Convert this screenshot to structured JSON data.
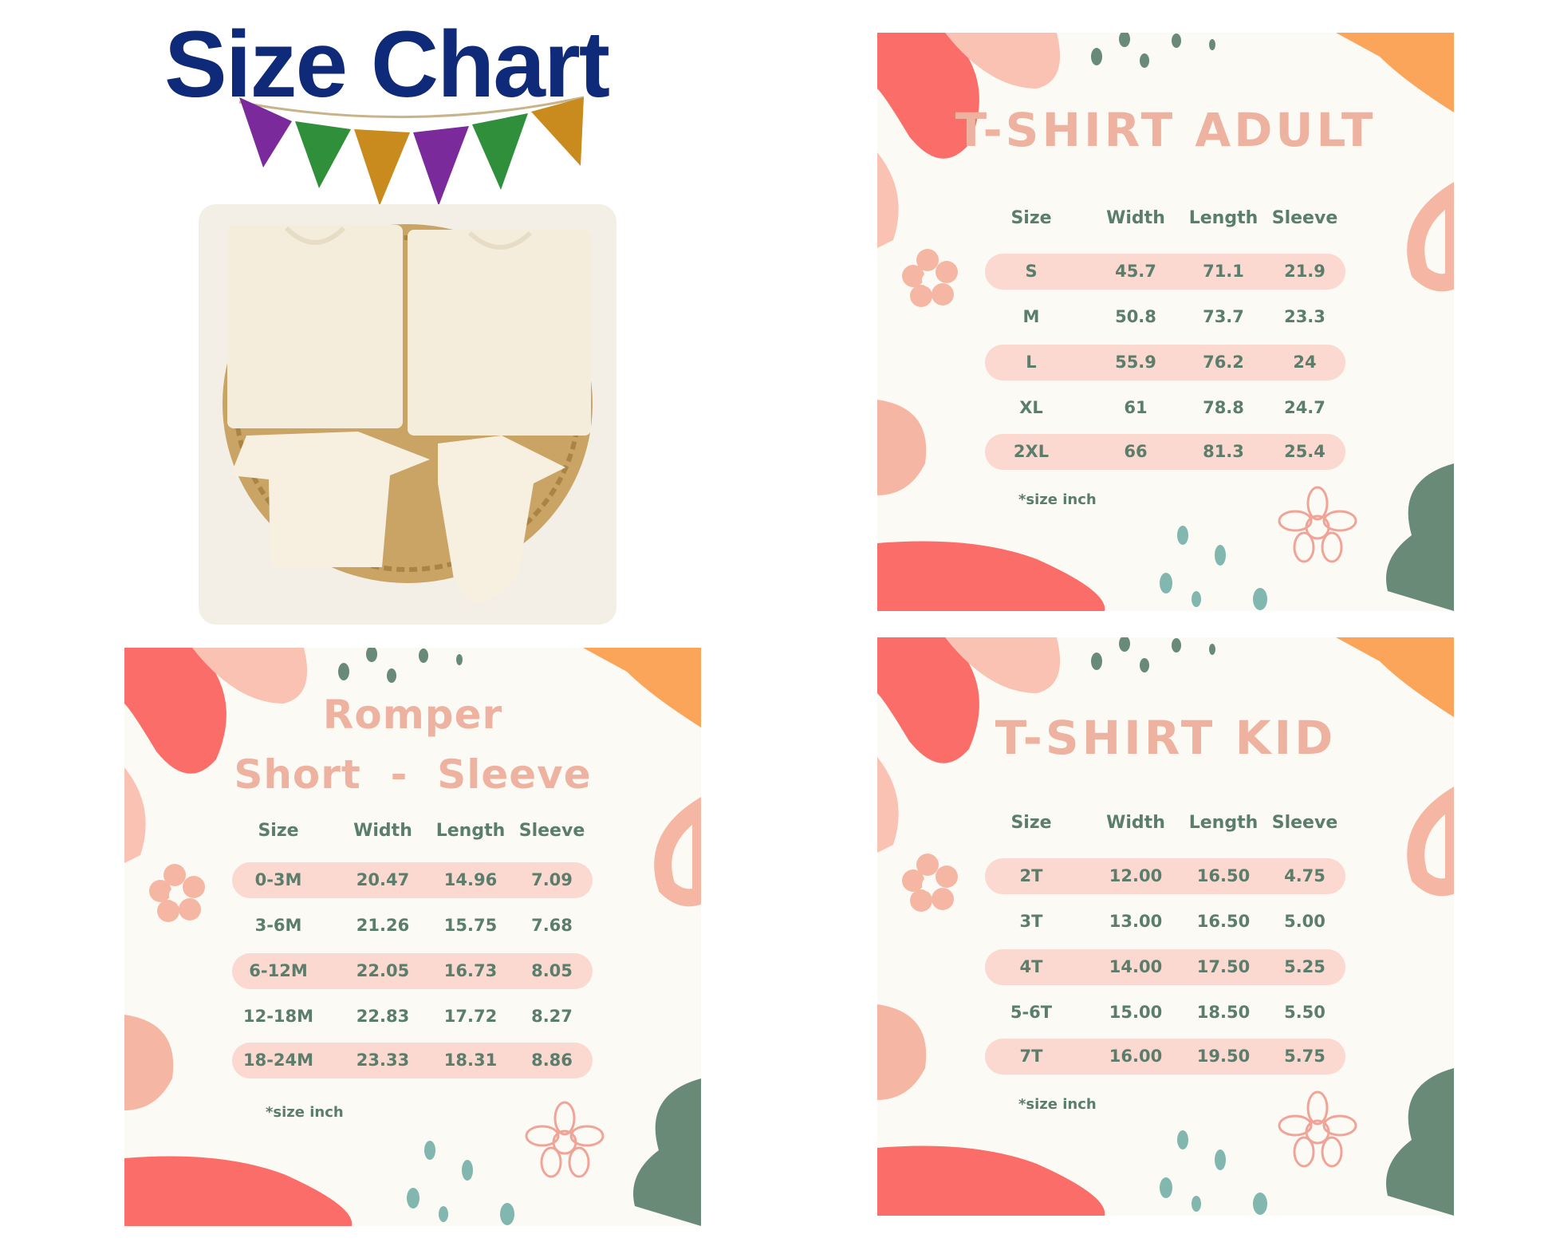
{
  "title": "Size Chart",
  "colors": {
    "title": "#0e2a78",
    "pennants": [
      "#7b2a9c",
      "#2f8f3a",
      "#c98a1e",
      "#7b2a9c",
      "#2f8f3a",
      "#c98a1e"
    ],
    "panel_bg": "#fcfaf5",
    "pill": "#fcd9d0",
    "text": "#5a7d6c",
    "heading": "#eeb2a0"
  },
  "photo": {
    "description_icon": "folded-tshirts-photo"
  },
  "charts": [
    {
      "id": "adult",
      "title_lines": [
        "T-SHIRT ADULT"
      ],
      "headers": [
        "Size",
        "Width",
        "Length",
        "Sleeve"
      ],
      "rows": [
        [
          "S",
          "45.7",
          "71.1",
          "21.9"
        ],
        [
          "M",
          "50.8",
          "73.7",
          "23.3"
        ],
        [
          "L",
          "55.9",
          "76.2",
          "24"
        ],
        [
          "XL",
          "61",
          "78.8",
          "24.7"
        ],
        [
          "2XL",
          "66",
          "81.3",
          "25.4"
        ]
      ],
      "note": "*size inch"
    },
    {
      "id": "romper",
      "title_lines": [
        "Romper",
        "Short  -  Sleeve"
      ],
      "headers": [
        "Size",
        "Width",
        "Length",
        "Sleeve"
      ],
      "rows": [
        [
          "0-3M",
          "20.47",
          "14.96",
          "7.09"
        ],
        [
          "3-6M",
          "21.26",
          "15.75",
          "7.68"
        ],
        [
          "6-12M",
          "22.05",
          "16.73",
          "8.05"
        ],
        [
          "12-18M",
          "22.83",
          "17.72",
          "8.27"
        ],
        [
          "18-24M",
          "23.33",
          "18.31",
          "8.86"
        ]
      ],
      "note": "*size inch"
    },
    {
      "id": "kid",
      "title_lines": [
        "T-SHIRT KID"
      ],
      "headers": [
        "Size",
        "Width",
        "Length",
        "Sleeve"
      ],
      "rows": [
        [
          "2T",
          "12.00",
          "16.50",
          "4.75"
        ],
        [
          "3T",
          "13.00",
          "16.50",
          "5.00"
        ],
        [
          "4T",
          "14.00",
          "17.50",
          "5.25"
        ],
        [
          "5-6T",
          "15.00",
          "18.50",
          "5.50"
        ],
        [
          "7T",
          "16.00",
          "19.50",
          "5.75"
        ]
      ],
      "note": "*size inch"
    }
  ]
}
